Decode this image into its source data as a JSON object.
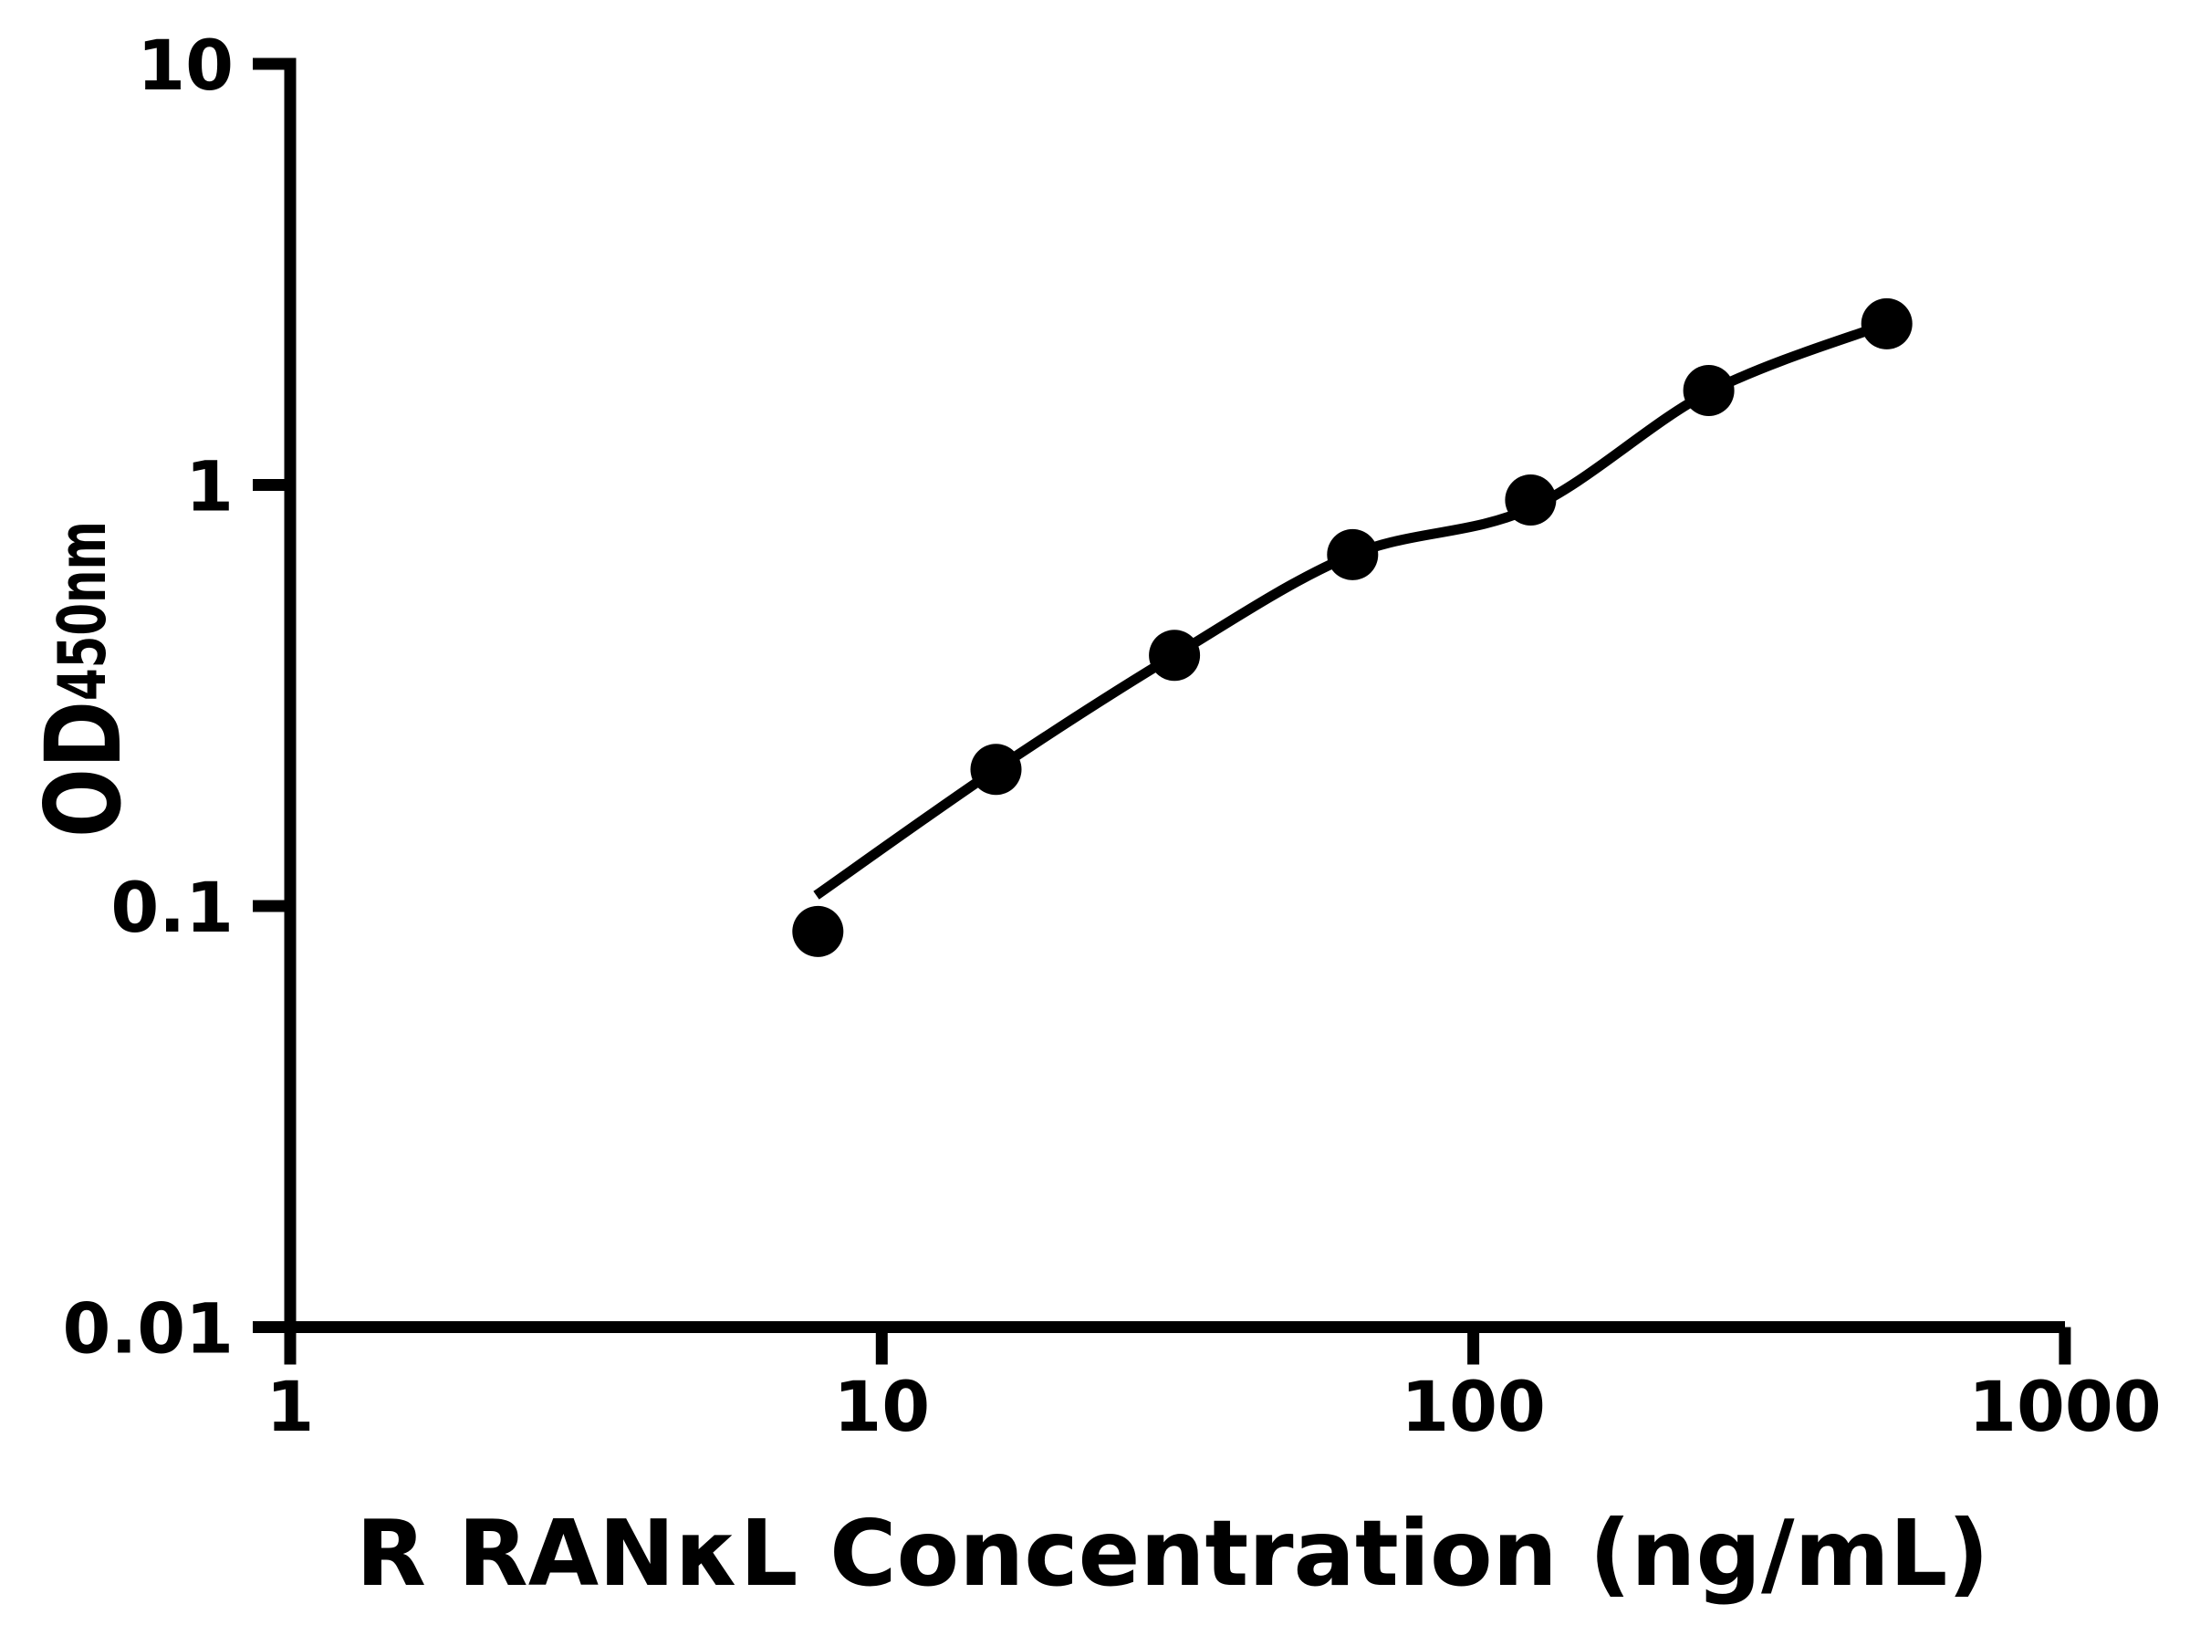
{
  "figure": {
    "background_color": "#ffffff",
    "ink_color": "#000000"
  },
  "chart_data": {
    "type": "scatter",
    "title": "",
    "xlabel": "R RANκL Concentration (ng/mL)",
    "ylabel": "OD450nm",
    "ylabel_main": "OD",
    "ylabel_sub": "450nm",
    "x_scale": "log",
    "y_scale": "log",
    "xlim": [
      1,
      1000
    ],
    "ylim": [
      0.01,
      10
    ],
    "grid": false,
    "legend": null,
    "x_ticks": [
      {
        "value": 1,
        "label": "1"
      },
      {
        "value": 10,
        "label": "10"
      },
      {
        "value": 100,
        "label": "100"
      },
      {
        "value": 1000,
        "label": "1000"
      }
    ],
    "y_ticks": [
      {
        "value": 10,
        "label": "10"
      },
      {
        "value": 1,
        "label": "1"
      },
      {
        "value": 0.1,
        "label": "0.1"
      },
      {
        "value": 0.01,
        "label": "0.01"
      }
    ],
    "series": [
      {
        "name": "standard-data-points",
        "role": "markers",
        "marker": "filled-circle",
        "color": "#000000",
        "points": [
          [
            7.8,
            0.087
          ],
          [
            15.6,
            0.211
          ],
          [
            31.25,
            0.394
          ],
          [
            62.5,
            0.683
          ],
          [
            125,
            0.921
          ],
          [
            250,
            1.676
          ],
          [
            500,
            2.413
          ]
        ]
      },
      {
        "name": "fitted-standard-curve",
        "role": "line",
        "color": "#000000",
        "points": [
          [
            7.75,
            0.106
          ],
          [
            15.6,
            0.211
          ],
          [
            31.25,
            0.394
          ],
          [
            62.5,
            0.683
          ],
          [
            125,
            0.881
          ],
          [
            250,
            1.66
          ],
          [
            500,
            2.413
          ]
        ]
      }
    ]
  }
}
